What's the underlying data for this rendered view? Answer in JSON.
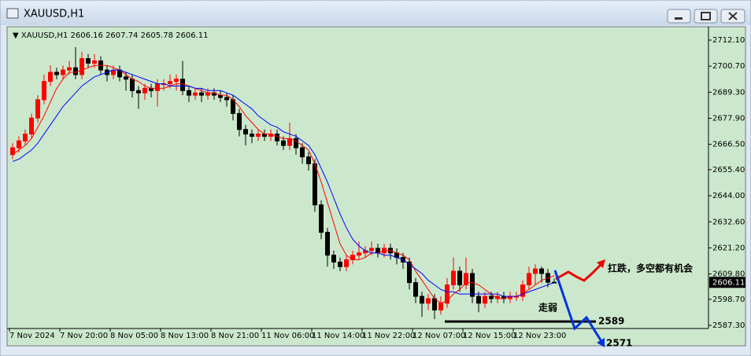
{
  "chart_data": {
    "type": "candlestick",
    "title": "XAUUSD,H1",
    "categories": [
      "7 Nov 2024",
      null,
      null,
      null,
      null,
      null,
      null,
      null,
      "7 Nov 20:00",
      null,
      null,
      null,
      null,
      null,
      null,
      null,
      "8 Nov 05:00",
      null,
      null,
      null,
      null,
      null,
      null,
      null,
      "8 Nov 13:00",
      null,
      null,
      null,
      null,
      null,
      null,
      null,
      "8 Nov 21:00",
      null,
      null,
      null,
      null,
      null,
      null,
      null,
      "11 Nov 06:00",
      null,
      null,
      null,
      null,
      null,
      null,
      null,
      "11 Nov 14:00",
      null,
      null,
      null,
      null,
      null,
      null,
      null,
      "11 Nov 22:00",
      null,
      null,
      null,
      null,
      null,
      null,
      null,
      "12 Nov 07:00",
      null,
      null,
      null,
      null,
      null,
      null,
      null,
      "12 Nov 15:00",
      null,
      null,
      null,
      null,
      null,
      null,
      null,
      "12 Nov 23:00",
      null,
      null,
      null,
      null,
      null,
      null
    ],
    "open": [
      2662,
      2665,
      2668,
      2671,
      2678,
      2686,
      2694,
      2698,
      2697,
      2699,
      2700,
      2697,
      2704,
      2702,
      2703,
      2699,
      2697,
      2699,
      2696,
      2695,
      2690,
      2689,
      2691,
      2690,
      2693,
      2693,
      2694,
      2695,
      2690,
      2688,
      2689,
      2688,
      2689,
      2688,
      2687,
      2686,
      2680,
      2673,
      2671,
      2670,
      2671,
      2670,
      2671,
      2668,
      2666,
      2669,
      2665,
      2661,
      2658,
      2640,
      2628,
      2618,
      2615,
      2613,
      2616,
      2618,
      2619,
      2620,
      2621,
      2619,
      2621,
      2619,
      2617,
      2615,
      2606,
      2600,
      2597,
      2599,
      2594,
      2597,
      2605,
      2611,
      2605,
      2610,
      2600,
      2597,
      2600,
      2599,
      2600,
      2599,
      2600,
      2600,
      2605,
      2610,
      2612,
      2610,
      2606.16
    ],
    "high": [
      2667,
      2670,
      2673,
      2680,
      2688,
      2697,
      2701,
      2700,
      2701,
      2703,
      2709,
      2707,
      2706,
      2706,
      2705,
      2701,
      2701,
      2701,
      2698,
      2697,
      2692,
      2693,
      2693,
      2695,
      2695,
      2697,
      2697,
      2703,
      2692,
      2691,
      2691,
      2691,
      2691,
      2690,
      2689,
      2688,
      2682,
      2675,
      2673,
      2673,
      2673,
      2673,
      2673,
      2670,
      2676,
      2671,
      2667,
      2663,
      2660,
      2642,
      2630,
      2620,
      2617,
      2618,
      2620,
      2624,
      2622,
      2624,
      2623,
      2623,
      2623,
      2621,
      2619,
      2617,
      2608,
      2602,
      2601,
      2601,
      2600,
      2608,
      2617,
      2613,
      2617,
      2612,
      2602,
      2602,
      2602,
      2602,
      2602,
      2602,
      2602,
      2607,
      2613,
      2614,
      2613,
      2612,
      2607.74
    ],
    "low": [
      2660,
      2663,
      2666,
      2669,
      2676,
      2684,
      2692,
      2695,
      2695,
      2697,
      2695,
      2695,
      2700,
      2700,
      2697,
      2694,
      2695,
      2694,
      2690,
      2687,
      2682,
      2686,
      2687,
      2683,
      2690,
      2691,
      2690,
      2688,
      2685,
      2686,
      2685,
      2686,
      2686,
      2685,
      2683,
      2677,
      2670,
      2666,
      2667,
      2668,
      2668,
      2668,
      2666,
      2664,
      2664,
      2662,
      2658,
      2655,
      2637,
      2625,
      2613,
      2612,
      2611,
      2611,
      2614,
      2616,
      2617,
      2618,
      2617,
      2617,
      2616,
      2614,
      2612,
      2603,
      2597,
      2591,
      2594,
      2590,
      2592,
      2595,
      2603,
      2602,
      2603,
      2597,
      2593,
      2595,
      2597,
      2597,
      2597,
      2597,
      2598,
      2598,
      2603,
      2605,
      2606,
      2604,
      2605.78
    ],
    "close": [
      2665,
      2668,
      2671,
      2678,
      2686,
      2694,
      2698,
      2697,
      2699,
      2700,
      2697,
      2704,
      2702,
      2703,
      2699,
      2697,
      2699,
      2696,
      2695,
      2690,
      2689,
      2691,
      2690,
      2693,
      2693,
      2694,
      2695,
      2690,
      2688,
      2689,
      2688,
      2689,
      2688,
      2687,
      2686,
      2680,
      2673,
      2671,
      2670,
      2671,
      2670,
      2671,
      2668,
      2666,
      2669,
      2665,
      2661,
      2658,
      2640,
      2628,
      2618,
      2615,
      2613,
      2616,
      2618,
      2619,
      2620,
      2621,
      2619,
      2621,
      2619,
      2617,
      2615,
      2606,
      2600,
      2597,
      2599,
      2594,
      2597,
      2605,
      2611,
      2605,
      2610,
      2600,
      2597,
      2600,
      2599,
      2600,
      2599,
      2600,
      2600,
      2605,
      2610,
      2612,
      2610,
      2606.16,
      2606.11
    ],
    "up_color": "#ff0000",
    "down_color": "#000000",
    "indicators": [
      {
        "color": "#ff0000",
        "values": [
          2662,
          2664,
          2666,
          2669,
          2674,
          2679,
          2685,
          2691,
          2695,
          2698,
          2698,
          2699,
          2700,
          2701,
          2701,
          2701,
          2700,
          2699,
          2697,
          2695,
          2694,
          2692,
          2691,
          2691,
          2691,
          2692,
          2693,
          2693,
          2692,
          2691,
          2690,
          2689,
          2689,
          2688,
          2688,
          2686,
          2683,
          2679,
          2676,
          2673,
          2671,
          2671,
          2670,
          2669,
          2669,
          2668,
          2666,
          2664,
          2658,
          2650,
          2641,
          2632,
          2623,
          2618,
          2616,
          2616,
          2617,
          2619,
          2619,
          2620,
          2620,
          2619,
          2618,
          2616,
          2611,
          2607,
          2603,
          2599,
          2597,
          2598,
          2601,
          2603,
          2606,
          2606,
          2605,
          2603,
          2601,
          2599,
          2599,
          2600,
          2600,
          2601,
          2603,
          2605,
          2607,
          2608,
          2609
        ]
      },
      {
        "color": "#0000ff",
        "values": [
          2659,
          2660,
          2662,
          2664,
          2667,
          2671,
          2675,
          2679,
          2683,
          2686,
          2689,
          2692,
          2694,
          2696,
          2697,
          2698,
          2699,
          2699,
          2698,
          2697,
          2696,
          2695,
          2694,
          2693,
          2693,
          2692,
          2692,
          2692,
          2692,
          2691,
          2691,
          2690,
          2690,
          2690,
          2689,
          2688,
          2686,
          2684,
          2682,
          2679,
          2677,
          2675,
          2674,
          2672,
          2671,
          2670,
          2668,
          2666,
          2662,
          2656,
          2650,
          2643,
          2636,
          2630,
          2625,
          2622,
          2620,
          2619,
          2619,
          2618,
          2618,
          2617,
          2616,
          2614,
          2612,
          2610,
          2607,
          2605,
          2603,
          2602,
          2602,
          2601,
          2601,
          2601,
          2601,
          2601,
          2601,
          2601,
          2600,
          2600,
          2600,
          2601,
          2602,
          2603,
          2604,
          2605,
          2606
        ]
      }
    ],
    "ylim": [
      2585.93,
      2717.26
    ],
    "yticks": [
      {
        "value": 2712.1,
        "label": "2712.10"
      },
      {
        "value": 2700.7,
        "label": "2700.70"
      },
      {
        "value": 2689.3,
        "label": "2689.30"
      },
      {
        "value": 2677.9,
        "label": "2677.90"
      },
      {
        "value": 2666.5,
        "label": "2666.50"
      },
      {
        "value": 2655.4,
        "label": "2655.40"
      },
      {
        "value": 2644,
        "label": "2644.00"
      },
      {
        "value": 2632.6,
        "label": "2632.60"
      },
      {
        "value": 2621.2,
        "label": "2621.20"
      },
      {
        "value": 2609.8,
        "label": "2609.80"
      },
      {
        "value": 2598.7,
        "label": "2598.70"
      },
      {
        "value": 2587.3,
        "label": "2587.30"
      }
    ],
    "grid": false,
    "annotations": [
      "扛跌，多空都有机会",
      "走弱"
    ],
    "levels": [
      2589
    ],
    "targets": [
      2571
    ]
  }
}
